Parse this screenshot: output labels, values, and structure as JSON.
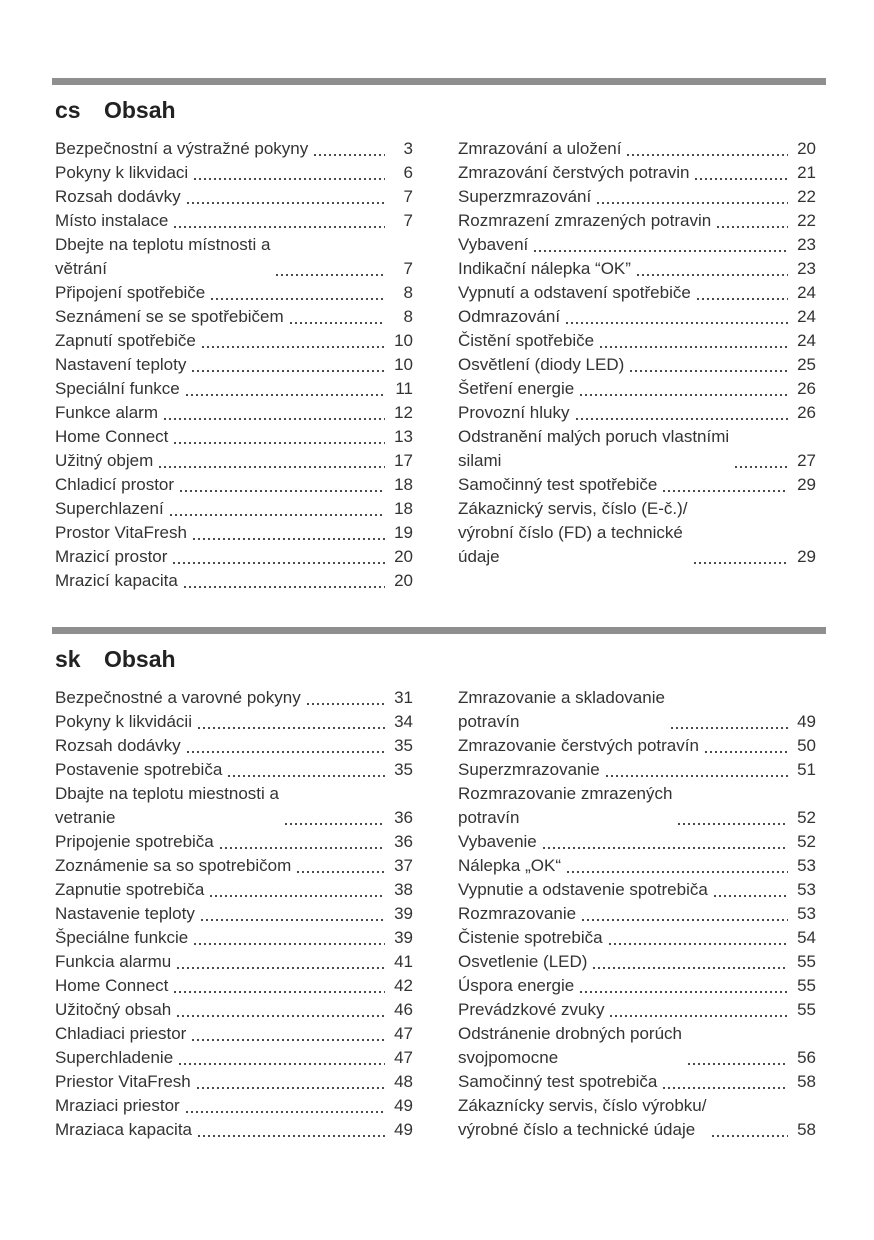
{
  "colors": {
    "bar": "#8f8f8f",
    "text": "#333333",
    "background": "#ffffff"
  },
  "sections": [
    {
      "lang": "cs",
      "title": "Obsah",
      "columns": [
        [
          {
            "label": "Bezpečnostní a výstražné pokyny",
            "page": "3"
          },
          {
            "label": "Pokyny k likvidaci",
            "page": "6"
          },
          {
            "label": "Rozsah dodávky",
            "page": "7"
          },
          {
            "label": "Místo instalace",
            "page": "7"
          },
          {
            "label": "Dbejte na teplotu místnosti a\nvětrání",
            "page": "7"
          },
          {
            "label": "Připojení spotřebiče",
            "page": "8"
          },
          {
            "label": "Seznámení se se spotřebičem",
            "page": "8"
          },
          {
            "label": "Zapnutí spotřebiče",
            "page": "10"
          },
          {
            "label": "Nastavení teploty",
            "page": "10"
          },
          {
            "label": "Speciální funkce",
            "page": "11"
          },
          {
            "label": "Funkce alarm",
            "page": "12"
          },
          {
            "label": "Home Connect",
            "page": "13"
          },
          {
            "label": "Užitný objem",
            "page": "17"
          },
          {
            "label": "Chladicí prostor",
            "page": "18"
          },
          {
            "label": "Superchlazení",
            "page": "18"
          },
          {
            "label": "Prostor VitaFresh",
            "page": "19"
          },
          {
            "label": "Mrazicí prostor",
            "page": "20"
          },
          {
            "label": "Mrazicí kapacita",
            "page": "20"
          }
        ],
        [
          {
            "label": "Zmrazování a uložení",
            "page": "20"
          },
          {
            "label": "Zmrazování čerstvých potravin",
            "page": "21"
          },
          {
            "label": "Superzmrazování",
            "page": "22"
          },
          {
            "label": "Rozmrazení zmrazených potravin",
            "page": "22"
          },
          {
            "label": "Vybavení",
            "page": "23"
          },
          {
            "label": "Indikační nálepka “OK”",
            "page": "23"
          },
          {
            "label": "Vypnutí a odstavení spotřebiče",
            "page": "24"
          },
          {
            "label": "Odmrazování",
            "page": "24"
          },
          {
            "label": "Čistění spotřebiče",
            "page": "24"
          },
          {
            "label": "Osvětlení (diody LED)",
            "page": "25"
          },
          {
            "label": "Šetření energie",
            "page": "26"
          },
          {
            "label": "Provozní hluky",
            "page": "26"
          },
          {
            "label": "Odstranění malých poruch vlastními\nsilami",
            "page": "27"
          },
          {
            "label": "Samočinný test spotřebiče",
            "page": "29"
          },
          {
            "label": "Zákaznický servis, číslo (E-č.)/\nvýrobní číslo (FD) a technické\núdaje",
            "page": "29"
          }
        ]
      ]
    },
    {
      "lang": "sk",
      "title": "Obsah",
      "columns": [
        [
          {
            "label": "Bezpečnostné a varovné pokyny",
            "page": "31"
          },
          {
            "label": "Pokyny k likvidácii",
            "page": "34"
          },
          {
            "label": "Rozsah dodávky",
            "page": "35"
          },
          {
            "label": "Postavenie spotrebiča",
            "page": "35"
          },
          {
            "label": "Dbajte na teplotu miestnosti a\nvetranie",
            "page": "36"
          },
          {
            "label": "Pripojenie spotrebiča",
            "page": "36"
          },
          {
            "label": "Zoznámenie sa so spotrebičom",
            "page": "37"
          },
          {
            "label": "Zapnutie spotrebiča",
            "page": "38"
          },
          {
            "label": "Nastavenie teploty",
            "page": "39"
          },
          {
            "label": "Špeciálne funkcie",
            "page": "39"
          },
          {
            "label": "Funkcia alarmu",
            "page": "41"
          },
          {
            "label": "Home Connect",
            "page": "42"
          },
          {
            "label": "Užitočný obsah",
            "page": "46"
          },
          {
            "label": "Chladiaci priestor",
            "page": "47"
          },
          {
            "label": "Superchladenie",
            "page": "47"
          },
          {
            "label": "Priestor VitaFresh",
            "page": "48"
          },
          {
            "label": "Mraziaci priestor",
            "page": "49"
          },
          {
            "label": "Mraziaca kapacita",
            "page": "49"
          }
        ],
        [
          {
            "label": "Zmrazovanie a skladovanie\npotravín",
            "page": "49"
          },
          {
            "label": "Zmrazovanie čerstvých potravín",
            "page": "50"
          },
          {
            "label": "Superzmrazovanie",
            "page": "51"
          },
          {
            "label": "Rozmrazovanie zmrazených\npotravín",
            "page": "52"
          },
          {
            "label": "Vybavenie",
            "page": "52"
          },
          {
            "label": "Nálepka „OK“",
            "page": "53"
          },
          {
            "label": "Vypnutie a odstavenie spotrebiča",
            "page": "53"
          },
          {
            "label": "Rozmrazovanie",
            "page": "53"
          },
          {
            "label": "Čistenie spotrebiča",
            "page": "54"
          },
          {
            "label": "Osvetlenie (LED)",
            "page": "55"
          },
          {
            "label": "Úspora energie",
            "page": "55"
          },
          {
            "label": "Prevádzkové zvuky",
            "page": "55"
          },
          {
            "label": "Odstránenie drobných porúch\nsvojpomocne",
            "page": "56"
          },
          {
            "label": "Samočinný test spotrebiča",
            "page": "58"
          },
          {
            "label": "Zákaznícky servis, číslo výrobku/\nvýrobné číslo a technické údaje",
            "page": "58"
          }
        ]
      ]
    }
  ]
}
